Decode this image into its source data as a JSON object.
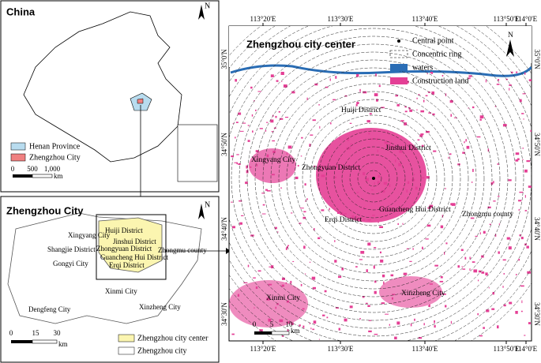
{
  "china_panel": {
    "title": "China",
    "north": "N",
    "legend": [
      "Henan Province",
      "Zhengzhou City"
    ],
    "scale": [
      "0",
      "500",
      "1,000"
    ],
    "scale_unit": "km"
  },
  "zhengzhou_panel": {
    "title": "Zhengzhou City",
    "north": "N",
    "labels": [
      "Huiji District",
      "Jinshui District",
      "Zhongyuan District",
      "Guancheng Hui District",
      "Erqi District",
      "Xingyang City",
      "Shangjie District",
      "Gongyi City",
      "Zhongmu county",
      "Xinmi City",
      "Dengfeng City",
      "Xinzheng City"
    ],
    "scale": [
      "0",
      "15",
      "30"
    ],
    "scale_unit": "km",
    "legend": [
      "Zhengzhou city center",
      "Zhengzhou city"
    ]
  },
  "center_panel": {
    "title": "Zhengzhou city center",
    "north": "N",
    "legend": [
      "Central point",
      "Concentric ring",
      "waters",
      "Construction land"
    ],
    "labels": [
      "Huiji District",
      "Jinshui District",
      "Xingyang City",
      "Zhongyuan District",
      "Guancheng Hui District",
      "Zhongmu county",
      "Erqi District",
      "Xinmi City",
      "Xinzheng City"
    ],
    "scale": [
      "0",
      "5",
      "10"
    ],
    "scale_unit": "km",
    "longitudes": [
      "113°20'E",
      "113°30'E",
      "113°40'E",
      "113°50'E",
      "114°0'E"
    ],
    "latitudes": [
      "35°0'N",
      "34°50'N",
      "34°40'N",
      "34°30'N"
    ]
  }
}
